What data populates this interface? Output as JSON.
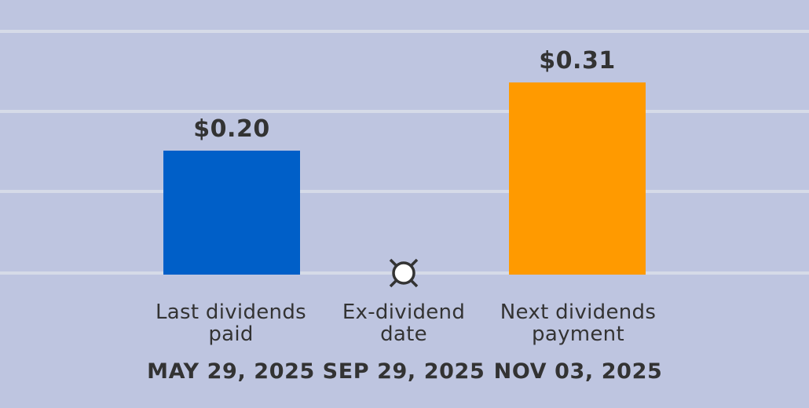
{
  "chart_data": {
    "type": "bar",
    "categories": [
      "Last dividends paid",
      "Ex-dividend date",
      "Next dividends payment"
    ],
    "dates": [
      "MAY 29, 2025",
      "SEP 29, 2025",
      "NOV 03, 2025"
    ],
    "values": [
      0.2,
      null,
      0.31
    ],
    "value_labels": [
      "$0.20",
      "",
      "$0.31"
    ],
    "bar_colors": [
      "#005fc8",
      null,
      "#ff9a00"
    ],
    "marker": "ex-dividend-marker",
    "grid": true,
    "background": "#bec5e0",
    "gridline_color": "#d6dbe8",
    "text_color": "#333333"
  }
}
